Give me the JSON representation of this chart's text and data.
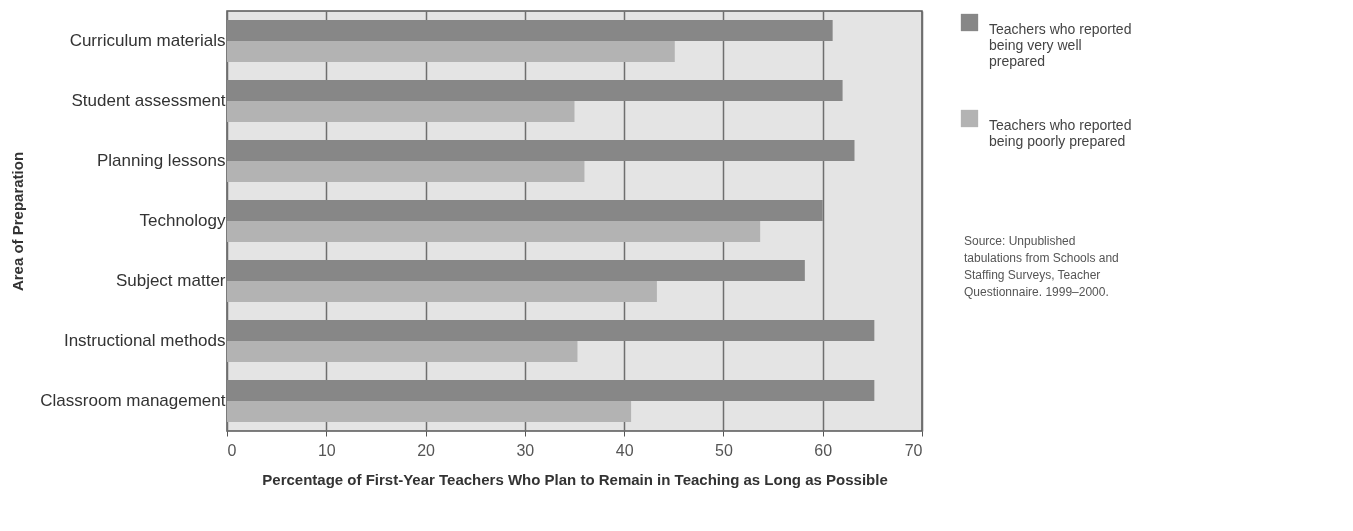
{
  "chart_data": {
    "type": "bar",
    "orientation": "horizontal",
    "xlabel": "Percentage of First-Year Teachers Who Plan to Remain in Teaching as Long as Possible",
    "ylabel": "Area of Preparation",
    "categories": [
      "Curriculum materials",
      "Student assessment",
      "Planning lessons",
      "Technology",
      "Subject matter",
      "Instructional methods",
      "Classroom management"
    ],
    "series": [
      {
        "name": "Teachers who reported being very well prepared",
        "color": "#878787",
        "values": [
          61,
          62,
          63.2,
          60,
          58.2,
          65.2,
          65.2
        ]
      },
      {
        "name": "Teachers who reported being poorly prepared",
        "color": "#b3b3b3",
        "values": [
          45.1,
          35,
          36,
          53.7,
          43.3,
          35.3,
          40.7
        ]
      }
    ],
    "xlim": [
      0,
      70
    ],
    "xticks": [
      0,
      10,
      20,
      30,
      40,
      50,
      60,
      70
    ],
    "grid": "x",
    "legend": "right",
    "annotations": [
      "Source: Unpublished tabulations from Schools and Staffing Surveys, Teacher Questionnaire. 1999–2000."
    ]
  }
}
